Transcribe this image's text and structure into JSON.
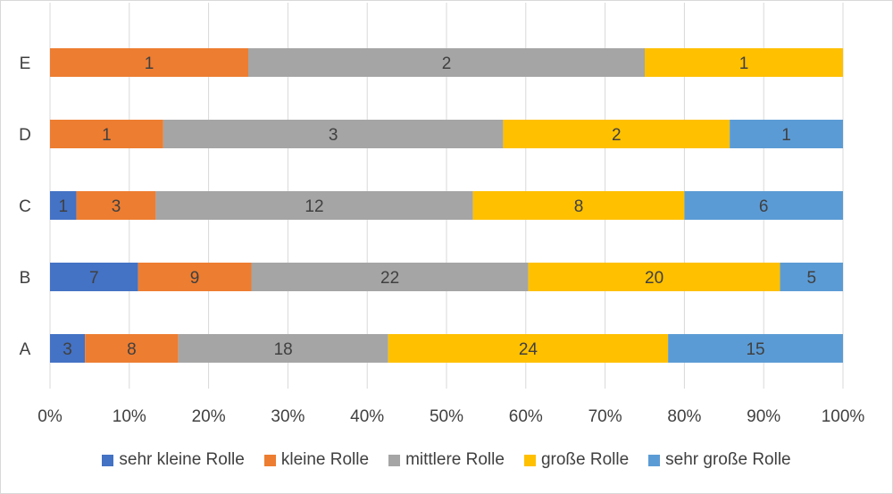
{
  "chart_data": {
    "type": "bar",
    "orientation": "horizontal",
    "stacking": "percent",
    "title": "",
    "xlabel": "",
    "ylabel": "",
    "categories": [
      "A",
      "B",
      "C",
      "D",
      "E"
    ],
    "x_ticks": [
      "0%",
      "10%",
      "20%",
      "30%",
      "40%",
      "50%",
      "60%",
      "70%",
      "80%",
      "90%",
      "100%"
    ],
    "xlim": [
      0,
      100
    ],
    "grid": "vertical",
    "legend_position": "bottom",
    "series": [
      {
        "name": "sehr kleine Rolle",
        "color": "#4472c4",
        "values": [
          3,
          7,
          1,
          0,
          0
        ]
      },
      {
        "name": "kleine Rolle",
        "color": "#ed7d31",
        "values": [
          8,
          9,
          3,
          1,
          1
        ]
      },
      {
        "name": "mittlere Rolle",
        "color": "#a5a5a5",
        "values": [
          18,
          22,
          12,
          3,
          2
        ]
      },
      {
        "name": "große Rolle",
        "color": "#ffc000",
        "values": [
          24,
          20,
          8,
          2,
          1
        ]
      },
      {
        "name": "sehr große Rolle",
        "color": "#5b9bd5",
        "values": [
          15,
          5,
          6,
          1,
          0
        ]
      }
    ]
  }
}
